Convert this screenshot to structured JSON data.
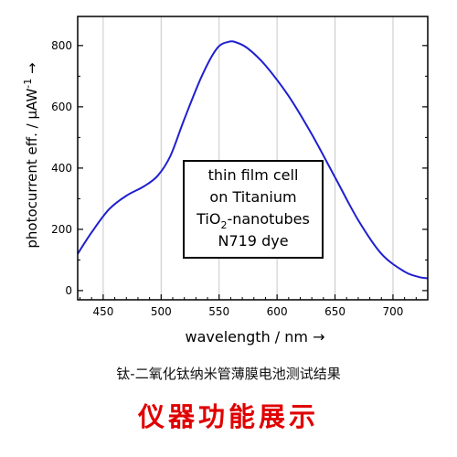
{
  "chart_data": {
    "type": "line",
    "xlabel": "wavelength / nm →",
    "ylabel_parts": [
      "photocurrent eff. / µAW",
      "-1",
      " →"
    ],
    "xlim": [
      428,
      730
    ],
    "ylim": [
      -30,
      895
    ],
    "xticks": [
      450,
      500,
      550,
      600,
      650,
      700
    ],
    "yticks": [
      0,
      200,
      400,
      600,
      800
    ],
    "grid": "vertical",
    "line_color": "#1f1fd0",
    "series": [
      {
        "x": [
          428,
          440,
          455,
          470,
          485,
          497,
          508,
          520,
          535,
          548,
          558,
          565,
          575,
          590,
          610,
          630,
          650,
          670,
          690,
          710,
          722,
          730
        ],
        "y": [
          120,
          190,
          265,
          310,
          340,
          375,
          440,
          560,
          700,
          790,
          812,
          810,
          790,
          735,
          635,
          510,
          370,
          230,
          120,
          62,
          45,
          40
        ]
      }
    ],
    "annotation": {
      "lines": [
        {
          "text": "thin film cell"
        },
        {
          "text": "on Titanium"
        },
        {
          "text": "TiO",
          "sub": "2",
          "tail": "-nanotubes"
        },
        {
          "text": "N719 dye"
        }
      ]
    }
  },
  "caption": {
    "text": "钛-二氧化钛纳米管薄膜电池测试结果",
    "highlight": "仪器功能展示",
    "highlight_color": "#e00000"
  }
}
